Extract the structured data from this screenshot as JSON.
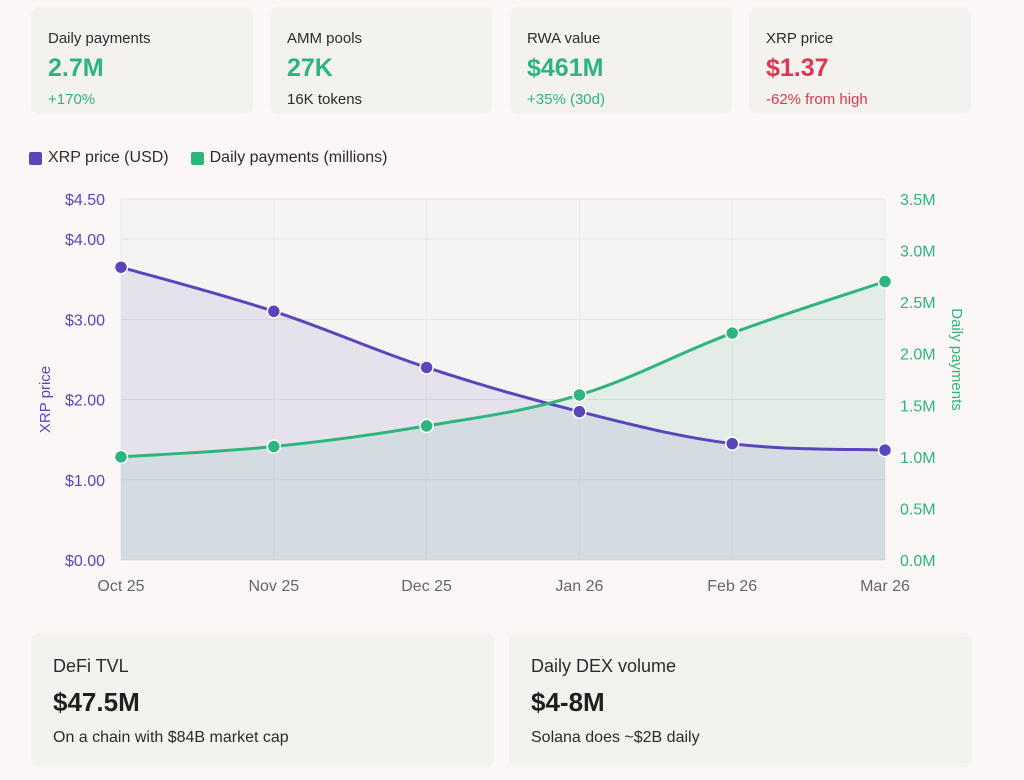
{
  "stats": [
    {
      "label": "Daily payments",
      "value": "2.7M",
      "sub": "+170%",
      "value_color": "#2db57d",
      "sub_color": "#2db57d"
    },
    {
      "label": "AMM pools",
      "value": "27K",
      "sub": "16K tokens",
      "value_color": "#2db57d",
      "sub_color": "#2b2b2b"
    },
    {
      "label": "RWA value",
      "value": "$461M",
      "sub": "+35% (30d)",
      "value_color": "#2db57d",
      "sub_color": "#2db57d"
    },
    {
      "label": "XRP price",
      "value": "$1.37",
      "sub": "-62% from high",
      "value_color": "#de3651",
      "sub_color": "#de3651"
    }
  ],
  "legend": [
    {
      "label": "XRP price (USD)",
      "color": "#5b45bd"
    },
    {
      "label": "Daily payments (millions)",
      "color": "#2db57d"
    }
  ],
  "chart_data": {
    "type": "line",
    "categories": [
      "Oct 25",
      "Nov 25",
      "Dec 25",
      "Jan 26",
      "Feb 26",
      "Mar 26"
    ],
    "series": [
      {
        "name": "XRP price (USD)",
        "axis": "left",
        "color": "#5b45bd",
        "values": [
          3.65,
          3.1,
          2.4,
          1.85,
          1.45,
          1.37
        ]
      },
      {
        "name": "Daily payments (millions)",
        "axis": "right",
        "color": "#2db57d",
        "values": [
          1.0,
          1.1,
          1.3,
          1.6,
          2.2,
          2.7
        ]
      }
    ],
    "ylabel_left": "XRP price",
    "ylabel_right": "Daily payments",
    "ylim_left": [
      0,
      4.5
    ],
    "ylim_right": [
      0,
      3.5
    ],
    "yticks_left": [
      "$0.00",
      "$1.00",
      "$2.00",
      "$3.00",
      "$4.00",
      "$4.50"
    ],
    "yticks_left_values": [
      0,
      1,
      2,
      3,
      4,
      4.5
    ],
    "yticks_right": [
      "0.0M",
      "0.5M",
      "1.0M",
      "1.5M",
      "2.0M",
      "2.5M",
      "3.0M",
      "3.5M"
    ],
    "yticks_right_values": [
      0,
      0.5,
      1.0,
      1.5,
      2.0,
      2.5,
      3.0,
      3.5
    ],
    "grid": true,
    "legend": "top-left",
    "left_axis_color": "#5b45bd",
    "right_axis_color": "#2db57d"
  },
  "bottom": [
    {
      "label": "DeFi TVL",
      "value": "$47.5M",
      "sub": "On a chain with $84B market cap"
    },
    {
      "label": "Daily DEX volume",
      "value": "$4-8M",
      "sub": "Solana does ~$2B daily"
    }
  ]
}
